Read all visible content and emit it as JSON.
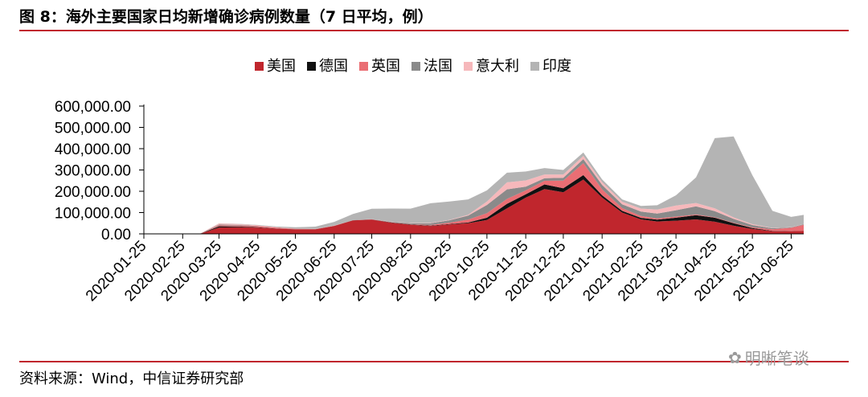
{
  "figure_title": "图 8：海外主要国家日均新增确诊病例数量（7 日平均，例）",
  "source_note": "资料来源：Wind，中信证券研究部",
  "watermark": "明晰笔谈",
  "colors": {
    "accent_rule": "#c0262d"
  },
  "chart_data": {
    "type": "area",
    "stacked": true,
    "legend_position": "top-center",
    "grid": false,
    "x_unit": "date",
    "x_range": [
      "2020-01-25",
      "2021-07-05"
    ],
    "x_ticks": [
      "2020-01-25",
      "2020-02-25",
      "2020-03-25",
      "2020-04-25",
      "2020-05-25",
      "2020-06-25",
      "2020-07-25",
      "2020-08-25",
      "2020-09-25",
      "2020-10-25",
      "2020-11-25",
      "2020-12-25",
      "2021-01-25",
      "2021-02-25",
      "2021-03-25",
      "2021-04-25",
      "2021-05-25",
      "2021-06-25"
    ],
    "y_ticks": [
      "0.00",
      "100,000.00",
      "200,000.00",
      "300,000.00",
      "400,000.00",
      "500,000.00",
      "600,000.00"
    ],
    "ylim": [
      0,
      600000
    ],
    "x": [
      "2020-01-25",
      "2020-02-25",
      "2020-03-10",
      "2020-03-25",
      "2020-04-10",
      "2020-04-25",
      "2020-05-10",
      "2020-05-25",
      "2020-06-10",
      "2020-06-25",
      "2020-07-10",
      "2020-07-25",
      "2020-08-10",
      "2020-08-25",
      "2020-09-10",
      "2020-09-25",
      "2020-10-10",
      "2020-10-25",
      "2020-11-10",
      "2020-11-25",
      "2020-12-10",
      "2020-12-25",
      "2021-01-10",
      "2021-01-25",
      "2021-02-10",
      "2021-02-25",
      "2021-03-10",
      "2021-03-25",
      "2021-04-10",
      "2021-04-25",
      "2021-05-10",
      "2021-05-25",
      "2021-06-10",
      "2021-06-25",
      "2021-07-05"
    ],
    "series": [
      {
        "name": "美国",
        "color": "#c0262d",
        "values": [
          0,
          0,
          500,
          30000,
          31000,
          29000,
          24000,
          21000,
          21000,
          37000,
          63000,
          67000,
          52000,
          43000,
          37000,
          44000,
          50000,
          65000,
          120000,
          170000,
          210000,
          195000,
          255000,
          170000,
          100000,
          68000,
          58000,
          62000,
          68000,
          57000,
          38000,
          23000,
          13000,
          12000,
          14000
        ]
      },
      {
        "name": "德国",
        "color": "#111111",
        "values": [
          0,
          0,
          200,
          5500,
          3500,
          2000,
          900,
          500,
          400,
          500,
          600,
          700,
          1200,
          1400,
          1700,
          2500,
          3200,
          11000,
          21000,
          16000,
          22000,
          19000,
          21000,
          11000,
          8000,
          7000,
          9000,
          14000,
          20000,
          19000,
          12000,
          4500,
          1500,
          700,
          600
        ]
      },
      {
        "name": "英国",
        "color": "#ea6e74",
        "values": [
          0,
          0,
          50,
          4000,
          4500,
          5000,
          4000,
          2000,
          1200,
          1000,
          700,
          700,
          1000,
          1300,
          3000,
          5800,
          14000,
          21000,
          23000,
          18000,
          17000,
          36000,
          56000,
          28000,
          13000,
          9000,
          5500,
          5000,
          3000,
          2500,
          2300,
          3000,
          7000,
          16000,
          28000
        ]
      },
      {
        "name": "法国",
        "color": "#8a8a8a",
        "values": [
          0,
          0,
          100,
          4000,
          3000,
          1300,
          700,
          500,
          400,
          550,
          700,
          1100,
          2200,
          4600,
          8500,
          11500,
          19000,
          39000,
          45000,
          18000,
          12000,
          13000,
          19000,
          21000,
          18000,
          21000,
          23000,
          30000,
          38000,
          28000,
          18000,
          11000,
          5000,
          2000,
          2500
        ]
      },
      {
        "name": "意大利",
        "color": "#f6b8bb",
        "values": [
          0,
          0,
          800,
          5500,
          4000,
          3000,
          1200,
          500,
          300,
          200,
          200,
          250,
          400,
          1100,
          1500,
          1800,
          3500,
          16000,
          33000,
          29000,
          18000,
          16000,
          15000,
          13000,
          12000,
          14000,
          19000,
          22000,
          16000,
          13000,
          7000,
          4000,
          1500,
          900,
          900
        ]
      },
      {
        "name": "印度",
        "color": "#b4b4b4",
        "values": [
          0,
          0,
          50,
          500,
          1000,
          1500,
          3500,
          6500,
          10500,
          17000,
          28000,
          48000,
          62000,
          67000,
          92000,
          86000,
          72000,
          52000,
          45000,
          42000,
          30000,
          21000,
          16000,
          13000,
          11000,
          12000,
          20000,
          48000,
          120000,
          330000,
          380000,
          230000,
          80000,
          48000,
          43000
        ]
      }
    ]
  }
}
